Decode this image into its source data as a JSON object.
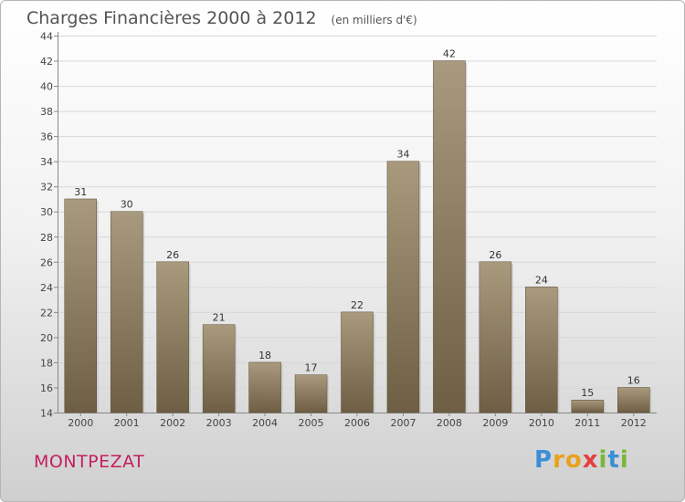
{
  "title": "Charges Financières 2000 à 2012",
  "unit_note": "(en milliers d'€)",
  "commune": "MONTPEZAT",
  "logo": {
    "text": "Proxiti",
    "letters": [
      "P",
      "r",
      "o",
      "x",
      "i",
      "t",
      "i"
    ],
    "colors": [
      "#3a8fd6",
      "#e9a11b",
      "#e9a11b",
      "#e63e3e",
      "#7ab73a",
      "#3a8fd6",
      "#7ab73a"
    ]
  },
  "chart_data": {
    "type": "bar",
    "categories": [
      "2000",
      "2001",
      "2002",
      "2003",
      "2004",
      "2005",
      "2006",
      "2007",
      "2008",
      "2009",
      "2010",
      "2011",
      "2012"
    ],
    "values": [
      31,
      30,
      26,
      21,
      18,
      17,
      22,
      34,
      42,
      26,
      24,
      15,
      16
    ],
    "title": "Charges Financières 2000 à 2012",
    "xlabel": "",
    "ylabel": "",
    "ylim": [
      14,
      44
    ],
    "yticks": [
      14,
      16,
      18,
      20,
      22,
      24,
      26,
      28,
      30,
      32,
      34,
      36,
      38,
      40,
      42,
      44
    ],
    "grid": true,
    "bar_color_top": "#a99a7e",
    "bar_color_bottom": "#6e5e44"
  }
}
